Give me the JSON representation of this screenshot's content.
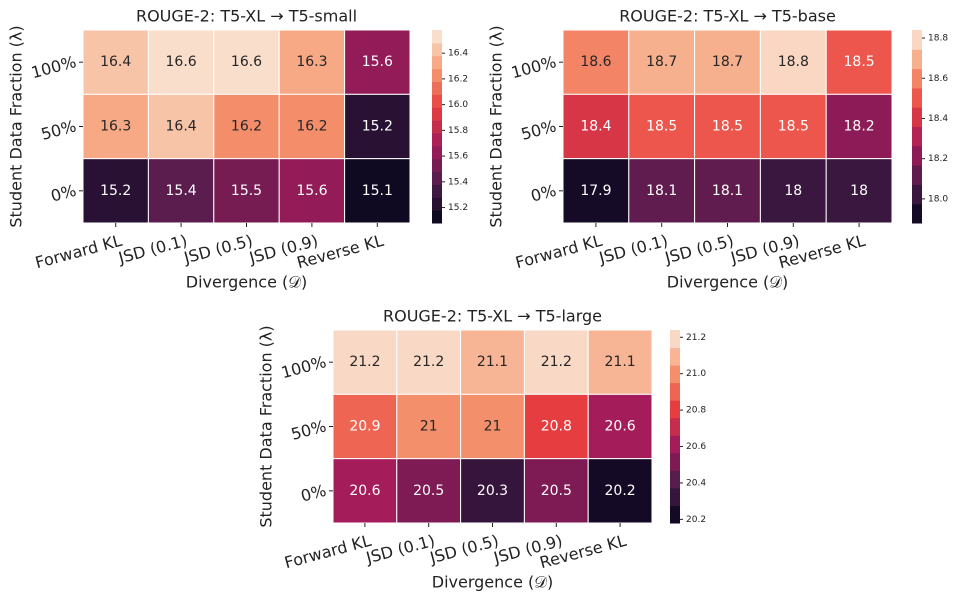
{
  "chart_data": [
    {
      "type": "heatmap",
      "title": "ROUGE-2: T5-XL → T5-small",
      "xlabel": "Divergence (𝒟)",
      "ylabel": "Student Data Fraction (λ)",
      "categories": [
        "Forward KL",
        "JSD (0.1)",
        "JSD (0.5)",
        "JSD (0.9)",
        "Reverse KL"
      ],
      "rows": [
        "100%",
        "50%",
        "0%"
      ],
      "values": [
        [
          16.4,
          16.6,
          16.6,
          16.3,
          15.6
        ],
        [
          16.3,
          16.4,
          16.2,
          16.2,
          15.2
        ],
        [
          15.2,
          15.4,
          15.5,
          15.6,
          15.1
        ]
      ],
      "zlim": [
        15.08,
        16.58
      ],
      "zticks": [
        15.2,
        15.4,
        15.6,
        15.8,
        {
          "value": 16,
          "label": "16.0"
        },
        16.2,
        16.4
      ],
      "colormap": [
        "#03051a",
        "#4c1d4b",
        "#a11a5b",
        "#e83f3f",
        "#f69c73",
        "#faebdd"
      ],
      "levels": 15
    },
    {
      "type": "heatmap",
      "title": "ROUGE-2: T5-XL → T5-base",
      "xlabel": "Divergence (𝒟)",
      "ylabel": "Student Data Fraction (λ)",
      "categories": [
        "Forward KL",
        "JSD (0.1)",
        "JSD (0.5)",
        "JSD (0.9)",
        "Reverse KL"
      ],
      "rows": [
        "100%",
        "50%",
        "0%"
      ],
      "values": [
        [
          18.6,
          18.7,
          18.7,
          18.8,
          18.5
        ],
        [
          18.4,
          18.5,
          18.5,
          18.5,
          18.2
        ],
        [
          17.9,
          18.1,
          18.1,
          18,
          18
        ]
      ],
      "zlim": [
        17.88,
        18.84
      ],
      "zticks": [
        {
          "value": 18,
          "label": "18.0"
        },
        18.2,
        18.4,
        18.6,
        18.8
      ],
      "colormap": [
        "#03051a",
        "#4c1d4b",
        "#a11a5b",
        "#e83f3f",
        "#f69c73",
        "#faebdd"
      ],
      "levels": 10
    },
    {
      "type": "heatmap",
      "title": "ROUGE-2: T5-XL → T5-large",
      "xlabel": "Divergence (𝒟)",
      "ylabel": "Student Data Fraction (λ)",
      "categories": [
        "Forward KL",
        "JSD (0.1)",
        "JSD (0.5)",
        "JSD (0.9)",
        "Reverse KL"
      ],
      "rows": [
        "100%",
        "50%",
        "0%"
      ],
      "values": [
        [
          21.2,
          21.2,
          21.1,
          21.2,
          21.1
        ],
        [
          20.9,
          21,
          21,
          20.8,
          20.6
        ],
        [
          20.6,
          20.5,
          20.3,
          20.5,
          20.2
        ]
      ],
      "zlim": [
        20.18,
        21.24
      ],
      "zticks": [
        20.2,
        20.4,
        20.6,
        20.8,
        {
          "value": 21,
          "label": "21.0"
        },
        21.2
      ],
      "colormap": [
        "#03051a",
        "#4c1d4b",
        "#a11a5b",
        "#e83f3f",
        "#f69c73",
        "#faebdd"
      ],
      "levels": 11
    }
  ]
}
